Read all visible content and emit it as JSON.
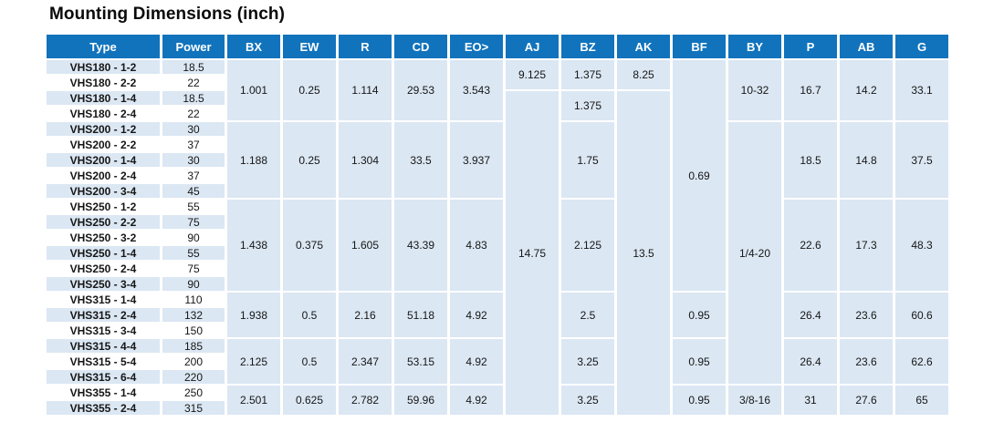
{
  "title": "Mounting Dimensions (inch)",
  "colors": {
    "header_bg": "#1173bc",
    "header_text": "#ffffff",
    "cell_blue": "#dbe7f3",
    "cell_white": "#ffffff",
    "text": "#161616"
  },
  "table": {
    "columns": [
      "Type",
      "Power",
      "BX",
      "EW",
      "R",
      "CD",
      "EO>",
      "AJ",
      "BZ",
      "AK",
      "BF",
      "BY",
      "P",
      "AB",
      "G"
    ],
    "rows": [
      {
        "type": "VHS180 - 1-2",
        "power": "18.5"
      },
      {
        "type": "VHS180 - 2-2",
        "power": "22"
      },
      {
        "type": "VHS180 - 1-4",
        "power": "18.5"
      },
      {
        "type": "VHS180 - 2-4",
        "power": "22"
      },
      {
        "type": "VHS200 - 1-2",
        "power": "30"
      },
      {
        "type": "VHS200 - 2-2",
        "power": "37"
      },
      {
        "type": "VHS200 - 1-4",
        "power": "30"
      },
      {
        "type": "VHS200 - 2-4",
        "power": "37"
      },
      {
        "type": "VHS200 - 3-4",
        "power": "45"
      },
      {
        "type": "VHS250 - 1-2",
        "power": "55"
      },
      {
        "type": "VHS250 - 2-2",
        "power": "75"
      },
      {
        "type": "VHS250 - 3-2",
        "power": "90"
      },
      {
        "type": "VHS250 - 1-4",
        "power": "55"
      },
      {
        "type": "VHS250 - 2-4",
        "power": "75"
      },
      {
        "type": "VHS250 - 3-4",
        "power": "90"
      },
      {
        "type": "VHS315 - 1-4",
        "power": "110"
      },
      {
        "type": "VHS315 - 2-4",
        "power": "132"
      },
      {
        "type": "VHS315 - 3-4",
        "power": "150"
      },
      {
        "type": "VHS315 - 4-4",
        "power": "185"
      },
      {
        "type": "VHS315 - 5-4",
        "power": "200"
      },
      {
        "type": "VHS315 - 6-4",
        "power": "220"
      },
      {
        "type": "VHS355 - 1-4",
        "power": "250"
      },
      {
        "type": "VHS355 - 2-4",
        "power": "315"
      }
    ],
    "merged_cells": {
      "BX": [
        {
          "row": 1,
          "span": 4,
          "value": "1.001"
        },
        {
          "row": 5,
          "span": 5,
          "value": "1.188"
        },
        {
          "row": 10,
          "span": 6,
          "value": "1.438"
        },
        {
          "row": 16,
          "span": 3,
          "value": "1.938"
        },
        {
          "row": 19,
          "span": 3,
          "value": "2.125"
        },
        {
          "row": 22,
          "span": 2,
          "value": "2.501"
        }
      ],
      "EW": [
        {
          "row": 1,
          "span": 4,
          "value": "0.25"
        },
        {
          "row": 5,
          "span": 5,
          "value": "0.25"
        },
        {
          "row": 10,
          "span": 6,
          "value": "0.375"
        },
        {
          "row": 16,
          "span": 3,
          "value": "0.5"
        },
        {
          "row": 19,
          "span": 3,
          "value": "0.5"
        },
        {
          "row": 22,
          "span": 2,
          "value": "0.625"
        }
      ],
      "R": [
        {
          "row": 1,
          "span": 4,
          "value": "1.114"
        },
        {
          "row": 5,
          "span": 5,
          "value": "1.304"
        },
        {
          "row": 10,
          "span": 6,
          "value": "1.605"
        },
        {
          "row": 16,
          "span": 3,
          "value": "2.16"
        },
        {
          "row": 19,
          "span": 3,
          "value": "2.347"
        },
        {
          "row": 22,
          "span": 2,
          "value": "2.782"
        }
      ],
      "CD": [
        {
          "row": 1,
          "span": 4,
          "value": "29.53"
        },
        {
          "row": 5,
          "span": 5,
          "value": "33.5"
        },
        {
          "row": 10,
          "span": 6,
          "value": "43.39"
        },
        {
          "row": 16,
          "span": 3,
          "value": "51.18"
        },
        {
          "row": 19,
          "span": 3,
          "value": "53.15"
        },
        {
          "row": 22,
          "span": 2,
          "value": "59.96"
        }
      ],
      "EO>": [
        {
          "row": 1,
          "span": 4,
          "value": "3.543"
        },
        {
          "row": 5,
          "span": 5,
          "value": "3.937"
        },
        {
          "row": 10,
          "span": 6,
          "value": "4.83"
        },
        {
          "row": 16,
          "span": 3,
          "value": "4.92"
        },
        {
          "row": 19,
          "span": 3,
          "value": "4.92"
        },
        {
          "row": 22,
          "span": 2,
          "value": "4.92"
        }
      ],
      "AJ": [
        {
          "row": 1,
          "span": 2,
          "value": "9.125"
        },
        {
          "row": 3,
          "span": 21,
          "value": "14.75"
        }
      ],
      "BZ": [
        {
          "row": 1,
          "span": 2,
          "value": "1.375"
        },
        {
          "row": 3,
          "span": 2,
          "value": "1.375"
        },
        {
          "row": 5,
          "span": 5,
          "value": "1.75"
        },
        {
          "row": 10,
          "span": 6,
          "value": "2.125"
        },
        {
          "row": 16,
          "span": 3,
          "value": "2.5"
        },
        {
          "row": 19,
          "span": 3,
          "value": "3.25"
        },
        {
          "row": 22,
          "span": 2,
          "value": "3.25"
        }
      ],
      "AK": [
        {
          "row": 1,
          "span": 2,
          "value": "8.25"
        },
        {
          "row": 3,
          "span": 21,
          "value": "13.5"
        }
      ],
      "BF": [
        {
          "row": 1,
          "span": 15,
          "value": "0.69"
        },
        {
          "row": 16,
          "span": 3,
          "value": "0.95"
        },
        {
          "row": 19,
          "span": 3,
          "value": "0.95"
        },
        {
          "row": 22,
          "span": 2,
          "value": "0.95"
        }
      ],
      "BY": [
        {
          "row": 1,
          "span": 4,
          "value": "10-32"
        },
        {
          "row": 5,
          "span": 17,
          "value": "1/4-20"
        },
        {
          "row": 22,
          "span": 2,
          "value": "3/8-16"
        }
      ],
      "P": [
        {
          "row": 1,
          "span": 4,
          "value": "16.7"
        },
        {
          "row": 5,
          "span": 5,
          "value": "18.5"
        },
        {
          "row": 10,
          "span": 6,
          "value": "22.6"
        },
        {
          "row": 16,
          "span": 3,
          "value": "26.4"
        },
        {
          "row": 19,
          "span": 3,
          "value": "26.4"
        },
        {
          "row": 22,
          "span": 2,
          "value": "31"
        }
      ],
      "AB": [
        {
          "row": 1,
          "span": 4,
          "value": "14.2"
        },
        {
          "row": 5,
          "span": 5,
          "value": "14.8"
        },
        {
          "row": 10,
          "span": 6,
          "value": "17.3"
        },
        {
          "row": 16,
          "span": 3,
          "value": "23.6"
        },
        {
          "row": 19,
          "span": 3,
          "value": "23.6"
        },
        {
          "row": 22,
          "span": 2,
          "value": "27.6"
        }
      ],
      "G": [
        {
          "row": 1,
          "span": 4,
          "value": "33.1"
        },
        {
          "row": 5,
          "span": 5,
          "value": "37.5"
        },
        {
          "row": 10,
          "span": 6,
          "value": "48.3"
        },
        {
          "row": 16,
          "span": 3,
          "value": "60.6"
        },
        {
          "row": 19,
          "span": 3,
          "value": "62.6"
        },
        {
          "row": 22,
          "span": 2,
          "value": "65"
        }
      ]
    }
  }
}
